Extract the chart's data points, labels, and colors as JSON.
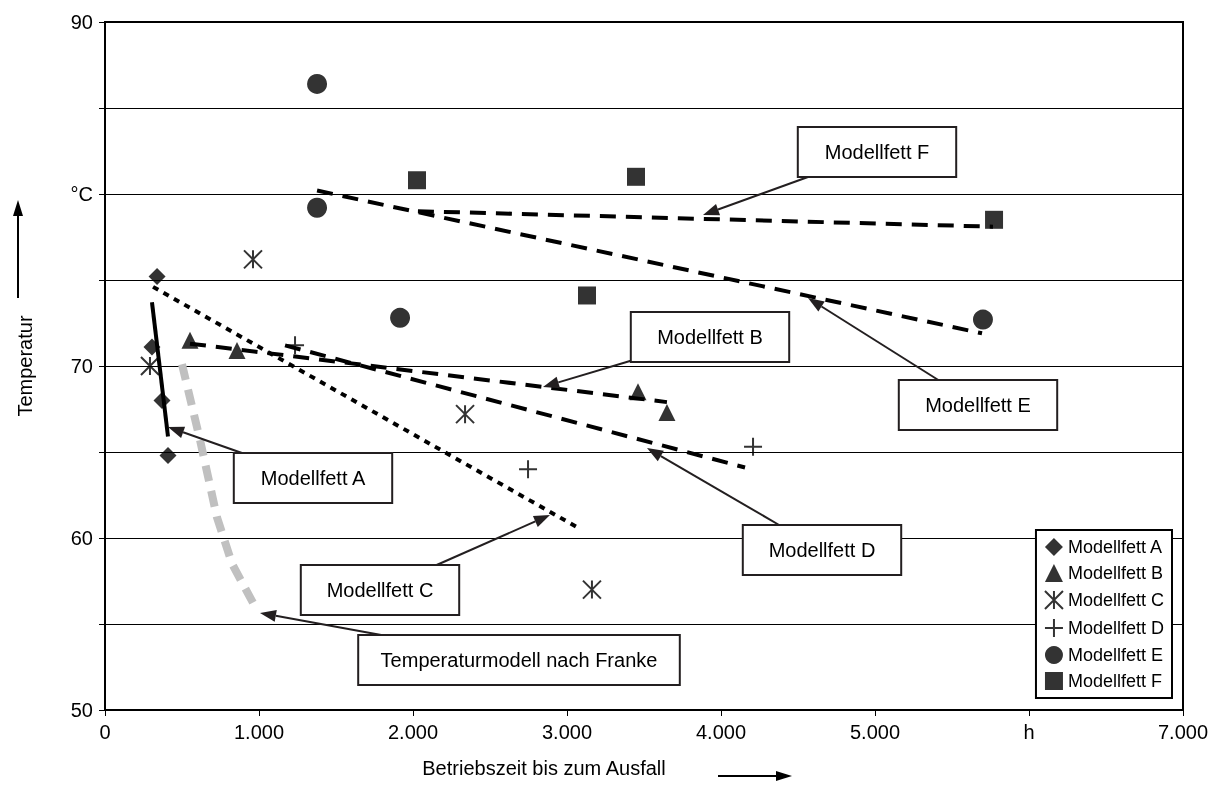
{
  "chart_data": {
    "type": "scatter",
    "xlabel": "Betriebszeit bis zum Ausfall",
    "ylabel": "Temperatur",
    "xlim": [
      0,
      7000
    ],
    "xticks": [
      0,
      {
        "value": 1000,
        "label": "1.000"
      },
      {
        "value": 2000,
        "label": "2.000"
      },
      {
        "value": 3000,
        "label": "3.000"
      },
      {
        "value": 4000,
        "label": "4.000"
      },
      {
        "value": 5000,
        "label": "5.000"
      },
      {
        "value": 6000,
        "label": "h"
      },
      {
        "value": 7000,
        "label": "7.000"
      }
    ],
    "ylim": [
      50,
      90
    ],
    "yticks": [
      50,
      {
        "value": 55,
        "label": null
      },
      60,
      {
        "value": 65,
        "label": null
      },
      70,
      {
        "value": 75,
        "label": null
      },
      {
        "value": 80,
        "label": "°C"
      },
      {
        "value": 85,
        "label": null
      },
      90
    ],
    "grid": "y",
    "legend": "bottom right",
    "series": [
      {
        "name": "Modellfett A",
        "marker": "diamond",
        "color": "#000000",
        "x": [
          338,
          305,
          370,
          409
        ],
        "values": [
          75.2,
          71.1,
          68.0,
          64.8
        ]
      },
      {
        "name": "Modellfett B",
        "marker": "triangle",
        "color": "#000000",
        "x": [
          552,
          857,
          3461,
          3649
        ],
        "values": [
          71.5,
          70.9,
          68.5,
          67.3
        ]
      },
      {
        "name": "Modellfett C",
        "marker": "cross",
        "color": "#000000",
        "x": [
          292,
          961,
          2338,
          3162
        ],
        "values": [
          70.0,
          76.2,
          67.2,
          57.0
        ]
      },
      {
        "name": "Modellfett D",
        "marker": "cross",
        "color": "#000000",
        "x": [
          1234,
          2747,
          4208
        ],
        "values": [
          71.2,
          64.0,
          65.3
        ]
      },
      {
        "name": "Modellfett E",
        "marker": "circle",
        "color": "#000000",
        "x": [
          1377,
          1377,
          1916,
          5701
        ],
        "values": [
          86.4,
          79.2,
          72.8,
          72.7
        ]
      },
      {
        "name": "Modellfett F",
        "marker": "square",
        "color": "#000000",
        "x": [
          2026,
          3448,
          3130,
          5773
        ],
        "values": [
          80.8,
          81.0,
          74.1,
          78.5
        ]
      },
      {
        "type": "line",
        "marker": "none",
        "line_style": "solid",
        "color": "#000000",
        "x": [
          305,
          409
        ],
        "values": [
          73.7,
          65.9
        ]
      },
      {
        "type": "line",
        "marker": "none",
        "line_style": "dashed",
        "color": "#000000",
        "x": [
          552,
          3649
        ],
        "values": [
          71.3,
          67.9
        ]
      },
      {
        "type": "line",
        "marker": "none",
        "line_style": "dotted",
        "color": "#000000",
        "x": [
          312,
          3071
        ],
        "values": [
          74.6,
          60.6
        ]
      },
      {
        "type": "line",
        "marker": "none",
        "line_style": "dashed",
        "color": "#000000",
        "x": [
          1169,
          4156
        ],
        "values": [
          71.2,
          64.1
        ]
      },
      {
        "type": "line",
        "marker": "none",
        "line_style": "dashed",
        "color": "#000000",
        "x": [
          1377,
          5695
        ],
        "values": [
          80.2,
          71.9
        ]
      },
      {
        "type": "line",
        "marker": "none",
        "line_style": "dashed",
        "color": "#000000",
        "x": [
          2032,
          5766
        ],
        "values": [
          79.0,
          78.1
        ]
      },
      {
        "type": "line",
        "marker": "none",
        "line_style": "dashed",
        "color": "#c0c0c0",
        "x": [
          500,
          617,
          727,
          825,
          987
        ],
        "values": [
          70.1,
          65.7,
          61.2,
          58.5,
          55.8
        ]
      }
    ],
    "annotations": [
      "Modellfett A",
      "Modellfett B",
      "Modellfett C",
      "Modellfett D",
      "Modellfett E",
      "Modellfett F",
      "Temperaturmodell nach Franke"
    ]
  }
}
